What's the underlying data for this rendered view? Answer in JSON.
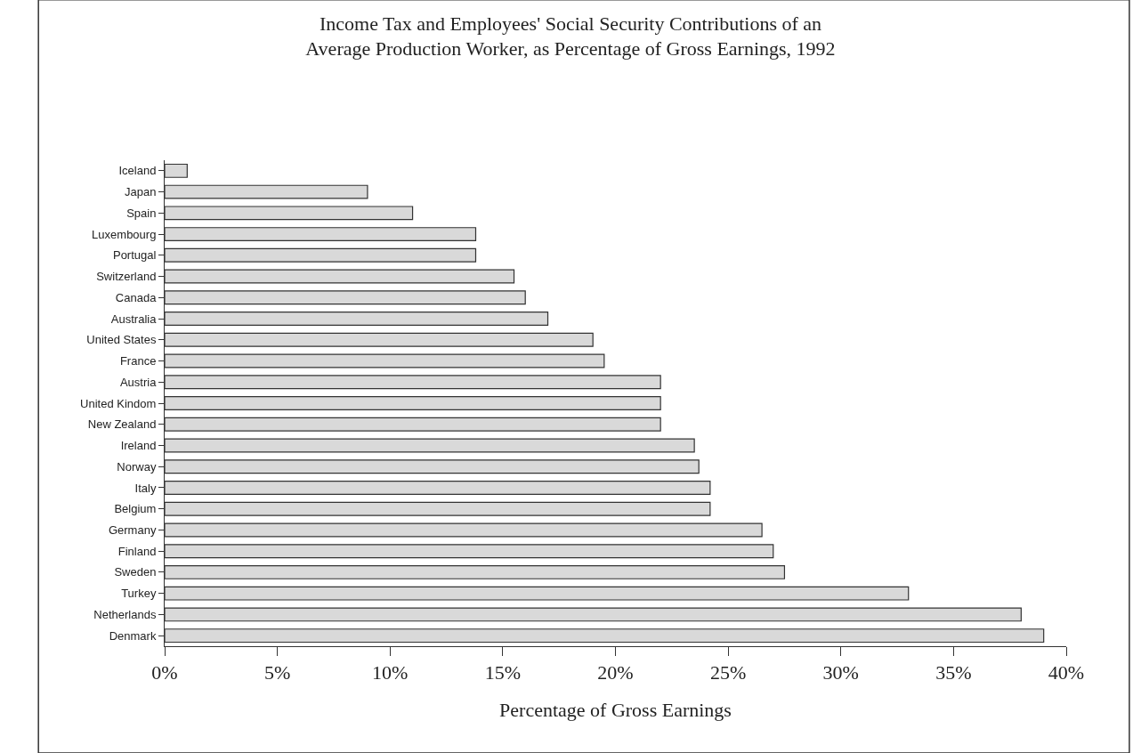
{
  "chart_data": {
    "type": "bar",
    "orientation": "horizontal",
    "title": "Income Tax and Employees' Social Security Contributions of an Average Production Worker, as Percentage of Gross Earnings, 1992",
    "xlabel": "Percentage of Gross Earnings",
    "categories": [
      "Iceland",
      "Japan",
      "Spain",
      "Luxembourg",
      "Portugal",
      "Switzerland",
      "Canada",
      "Australia",
      "United States",
      "France",
      "Austria",
      "United Kindom",
      "New Zealand",
      "Ireland",
      "Norway",
      "Italy",
      "Belgium",
      "Germany",
      "Finland",
      "Sweden",
      "Turkey",
      "Netherlands",
      "Denmark"
    ],
    "values": [
      1,
      9,
      11,
      13.8,
      13.8,
      15.5,
      16,
      17,
      19,
      19.5,
      22,
      22,
      22,
      23.5,
      23.7,
      24.2,
      24.2,
      26.5,
      27,
      27.5,
      33,
      38,
      39
    ],
    "color": "#d9d9d9",
    "xlim": [
      0,
      40
    ],
    "xticks": [
      {
        "value": 0,
        "label": "0%"
      },
      {
        "value": 5,
        "label": "5%"
      },
      {
        "value": 10,
        "label": "10%"
      },
      {
        "value": 15,
        "label": "15%"
      },
      {
        "value": 20,
        "label": "20%"
      },
      {
        "value": 25,
        "label": "25%"
      },
      {
        "value": 30,
        "label": "30%"
      },
      {
        "value": 35,
        "label": "35%"
      },
      {
        "value": 40,
        "label": "40%"
      }
    ],
    "grid": false,
    "legend": false
  }
}
